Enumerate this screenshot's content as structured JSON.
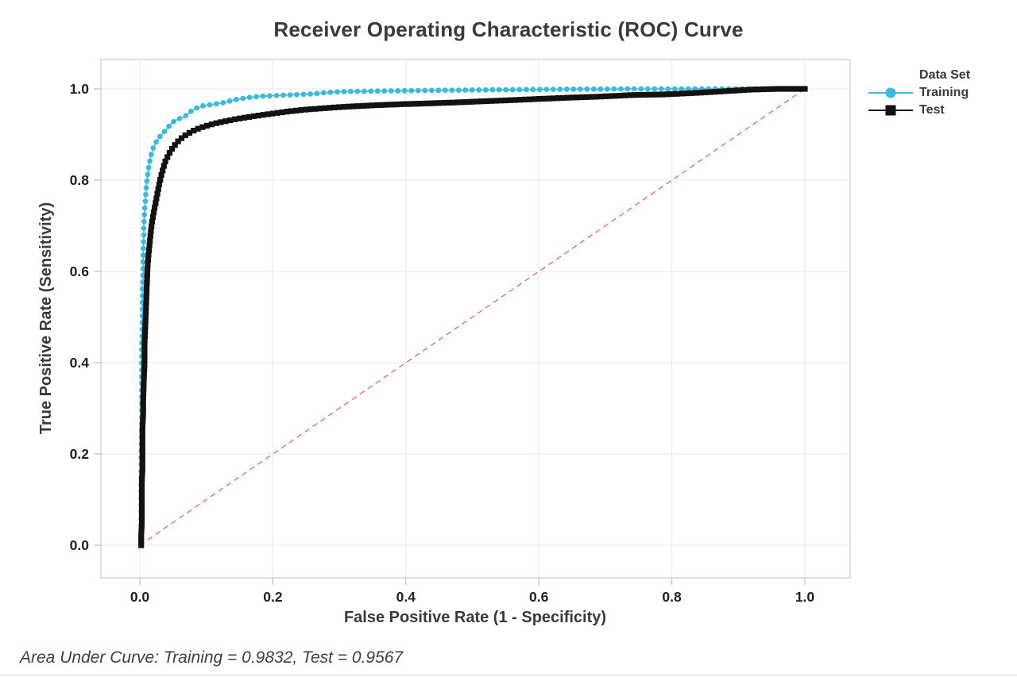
{
  "chart_data": {
    "type": "line",
    "title": "Receiver Operating Characteristic (ROC) Curve",
    "xlabel": "False Positive Rate (1 - Specificity)",
    "ylabel": "True Positive Rate (Sensitivity)",
    "footnote": "Area Under Curve: Training = 0.9832, Test = 0.9567",
    "legend_title": "Data Set",
    "legend_position": "right",
    "grid": true,
    "xlim": [
      -0.06,
      1.068
    ],
    "ylim": [
      -0.071,
      1.064
    ],
    "x_ticks": {
      "values": [
        0.0,
        0.2,
        0.4,
        0.6,
        0.8,
        1.0
      ],
      "labels": [
        "0.0",
        "0.2",
        "0.4",
        "0.6",
        "0.8",
        "1.0"
      ]
    },
    "y_ticks": {
      "values": [
        0.0,
        0.2,
        0.4,
        0.6,
        0.8,
        1.0
      ],
      "labels": [
        "0.0",
        "0.2",
        "0.4",
        "0.6",
        "0.8",
        "1.0"
      ]
    },
    "colors": {
      "grid": "#eaeaea",
      "plot_border": "#c9c9c9",
      "tick_mark": "#bdbdbd",
      "reference_line": "#e05b5b",
      "title_text": "#3a3a3a"
    },
    "reference_line": {
      "from": [
        0,
        0
      ],
      "to": [
        1,
        1
      ],
      "style": "dashed",
      "color": "#e05b5b"
    },
    "series": [
      {
        "name": "Training",
        "color": "#3fb9d9",
        "marker": "circle",
        "auc": 0.9832,
        "points": [
          [
            0.002,
            0.0
          ],
          [
            0.002,
            0.04
          ],
          [
            0.002,
            0.08
          ],
          [
            0.002,
            0.12
          ],
          [
            0.002,
            0.16
          ],
          [
            0.002,
            0.2
          ],
          [
            0.003,
            0.24
          ],
          [
            0.003,
            0.28
          ],
          [
            0.003,
            0.32
          ],
          [
            0.003,
            0.36
          ],
          [
            0.003,
            0.4
          ],
          [
            0.003,
            0.44
          ],
          [
            0.004,
            0.48
          ],
          [
            0.004,
            0.52
          ],
          [
            0.004,
            0.56
          ],
          [
            0.005,
            0.6
          ],
          [
            0.005,
            0.64
          ],
          [
            0.006,
            0.68
          ],
          [
            0.006,
            0.7
          ],
          [
            0.007,
            0.73
          ],
          [
            0.008,
            0.75
          ],
          [
            0.009,
            0.77
          ],
          [
            0.01,
            0.79
          ],
          [
            0.012,
            0.815
          ],
          [
            0.014,
            0.835
          ],
          [
            0.017,
            0.855
          ],
          [
            0.02,
            0.87
          ],
          [
            0.024,
            0.882
          ],
          [
            0.028,
            0.892
          ],
          [
            0.033,
            0.9
          ],
          [
            0.039,
            0.91
          ],
          [
            0.046,
            0.922
          ],
          [
            0.052,
            0.93
          ],
          [
            0.06,
            0.935
          ],
          [
            0.068,
            0.94
          ],
          [
            0.076,
            0.95
          ],
          [
            0.085,
            0.958
          ],
          [
            0.095,
            0.963
          ],
          [
            0.105,
            0.965
          ],
          [
            0.118,
            0.968
          ],
          [
            0.13,
            0.971
          ],
          [
            0.142,
            0.976
          ],
          [
            0.155,
            0.979
          ],
          [
            0.168,
            0.982
          ],
          [
            0.182,
            0.984
          ],
          [
            0.2,
            0.985
          ],
          [
            0.22,
            0.9865
          ],
          [
            0.24,
            0.9875
          ],
          [
            0.26,
            0.989
          ],
          [
            0.28,
            0.992
          ],
          [
            0.3,
            0.9935
          ],
          [
            0.32,
            0.9945
          ],
          [
            0.345,
            0.995
          ],
          [
            0.37,
            0.9955
          ],
          [
            0.4,
            0.996
          ],
          [
            0.43,
            0.9965
          ],
          [
            0.46,
            0.997
          ],
          [
            0.5,
            0.9975
          ],
          [
            0.54,
            0.998
          ],
          [
            0.58,
            0.9985
          ],
          [
            0.62,
            0.999
          ],
          [
            0.66,
            0.9995
          ],
          [
            0.7,
            0.9995
          ],
          [
            0.74,
            1.0
          ],
          [
            0.8,
            1.0
          ],
          [
            0.86,
            1.0
          ],
          [
            0.92,
            1.0
          ],
          [
            1.0,
            1.0
          ]
        ]
      },
      {
        "name": "Test",
        "color": "#121212",
        "marker": "square",
        "auc": 0.9567,
        "points": [
          [
            0.002,
            0.0
          ],
          [
            0.002,
            0.02
          ],
          [
            0.003,
            0.05
          ],
          [
            0.003,
            0.08
          ],
          [
            0.003,
            0.11
          ],
          [
            0.003,
            0.14
          ],
          [
            0.004,
            0.17
          ],
          [
            0.004,
            0.2
          ],
          [
            0.004,
            0.23
          ],
          [
            0.004,
            0.26
          ],
          [
            0.005,
            0.29
          ],
          [
            0.005,
            0.32
          ],
          [
            0.006,
            0.36
          ],
          [
            0.007,
            0.4
          ],
          [
            0.007,
            0.44
          ],
          [
            0.008,
            0.47
          ],
          [
            0.009,
            0.51
          ],
          [
            0.01,
            0.55
          ],
          [
            0.011,
            0.59
          ],
          [
            0.012,
            0.62
          ],
          [
            0.014,
            0.65
          ],
          [
            0.016,
            0.68
          ],
          [
            0.018,
            0.705
          ],
          [
            0.021,
            0.73
          ],
          [
            0.025,
            0.76
          ],
          [
            0.029,
            0.79
          ],
          [
            0.033,
            0.815
          ],
          [
            0.038,
            0.84
          ],
          [
            0.044,
            0.858
          ],
          [
            0.05,
            0.872
          ],
          [
            0.058,
            0.886
          ],
          [
            0.066,
            0.896
          ],
          [
            0.076,
            0.905
          ],
          [
            0.086,
            0.912
          ],
          [
            0.098,
            0.918
          ],
          [
            0.112,
            0.924
          ],
          [
            0.128,
            0.929
          ],
          [
            0.145,
            0.934
          ],
          [
            0.162,
            0.938
          ],
          [
            0.18,
            0.942
          ],
          [
            0.2,
            0.946
          ],
          [
            0.22,
            0.95
          ],
          [
            0.245,
            0.954
          ],
          [
            0.27,
            0.957
          ],
          [
            0.3,
            0.96
          ],
          [
            0.33,
            0.9625
          ],
          [
            0.36,
            0.9645
          ],
          [
            0.395,
            0.9665
          ],
          [
            0.43,
            0.968
          ],
          [
            0.47,
            0.97
          ],
          [
            0.51,
            0.9725
          ],
          [
            0.554,
            0.975
          ],
          [
            0.6,
            0.978
          ],
          [
            0.64,
            0.9805
          ],
          [
            0.69,
            0.983
          ],
          [
            0.74,
            0.9865
          ],
          [
            0.79,
            0.988
          ],
          [
            0.84,
            0.9915
          ],
          [
            0.88,
            0.995
          ],
          [
            0.92,
            0.9985
          ],
          [
            0.96,
            1.0
          ],
          [
            1.0,
            1.0
          ]
        ]
      }
    ]
  }
}
